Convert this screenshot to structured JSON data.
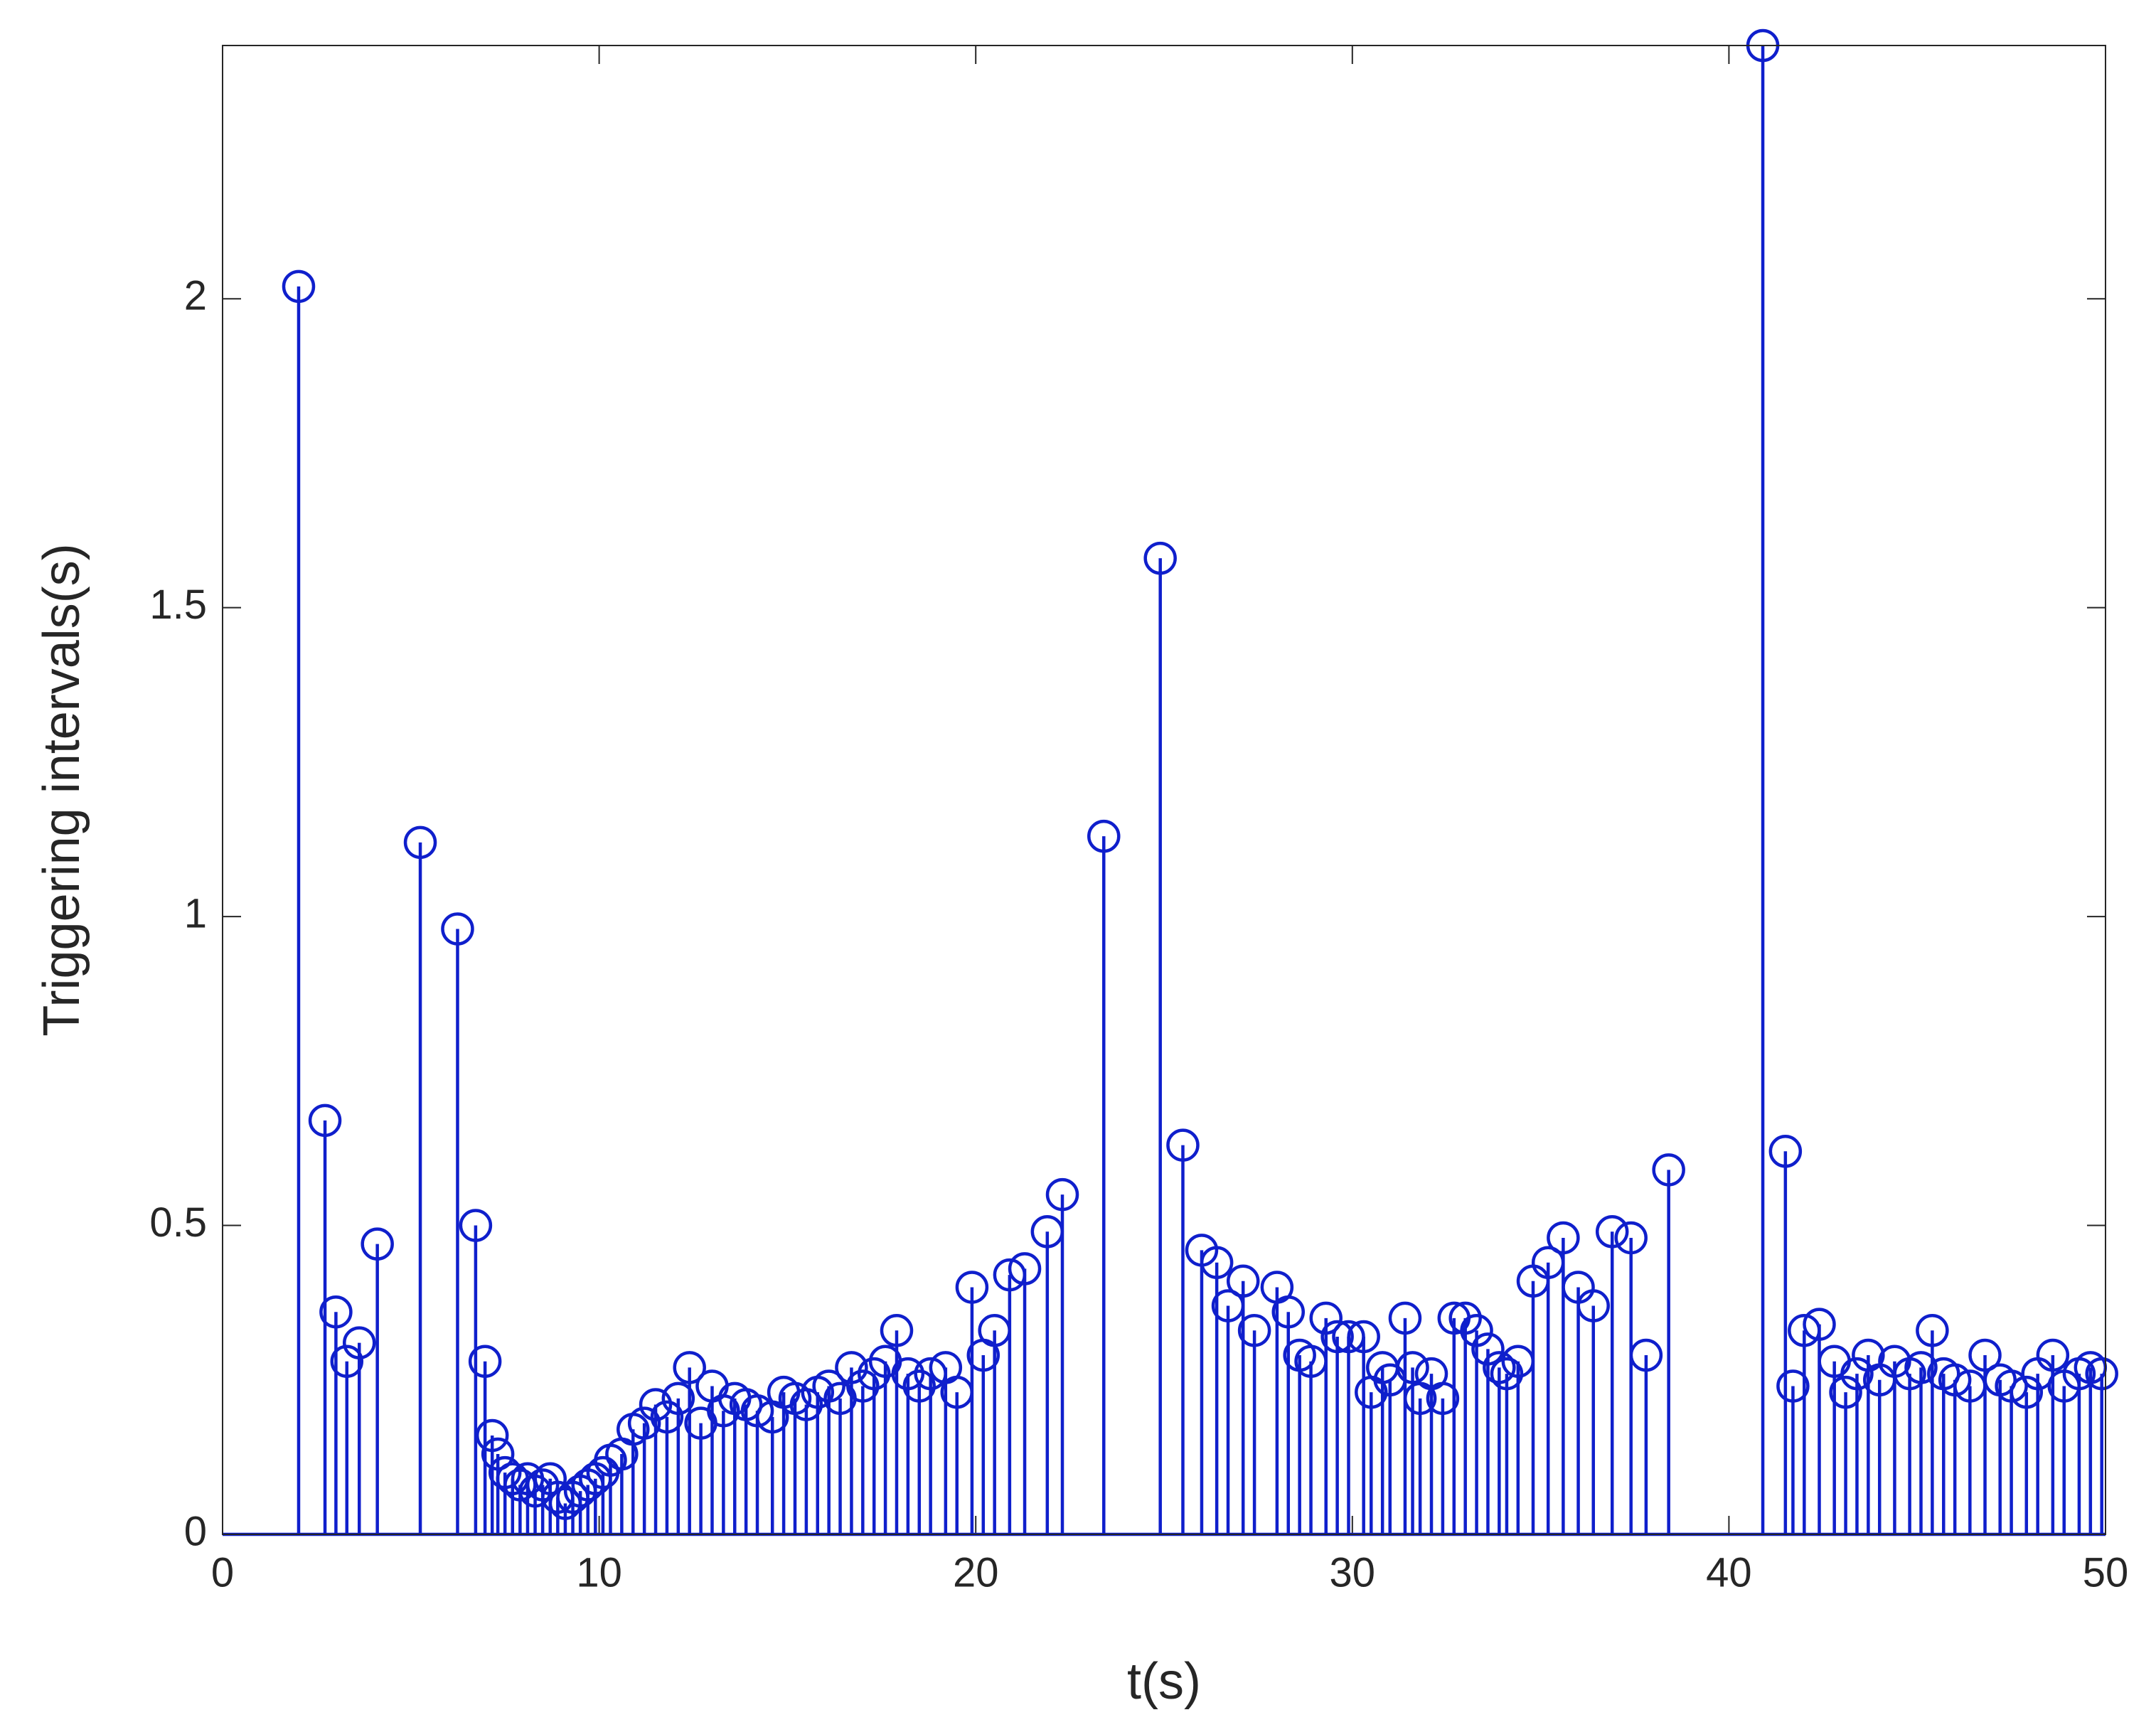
{
  "chart_data": {
    "type": "stem",
    "xlabel": "t(s)",
    "ylabel": "Triggering intervals(s)",
    "color": "#0f1fcc",
    "xlim": [
      0,
      50
    ],
    "xticks": [
      0,
      10,
      20,
      30,
      40,
      50
    ],
    "ylim": [
      0,
      2.41
    ],
    "yticks": [
      0,
      0.5,
      1,
      1.5,
      2
    ],
    "x": [
      2.02,
      2.72,
      3.01,
      3.3,
      3.63,
      4.11,
      5.25,
      6.24,
      6.72,
      6.97,
      7.16,
      7.31,
      7.5,
      7.7,
      7.9,
      8.1,
      8.3,
      8.5,
      8.7,
      8.9,
      9.1,
      9.3,
      9.5,
      9.7,
      9.9,
      10.1,
      10.3,
      10.6,
      10.9,
      11.2,
      11.5,
      11.8,
      12.1,
      12.4,
      12.7,
      13.0,
      13.3,
      13.6,
      13.9,
      14.2,
      14.6,
      14.9,
      15.2,
      15.5,
      15.8,
      16.1,
      16.4,
      16.7,
      17.0,
      17.3,
      17.6,
      17.9,
      18.2,
      18.5,
      18.8,
      19.2,
      19.5,
      19.9,
      20.2,
      20.5,
      20.9,
      21.3,
      21.9,
      22.3,
      23.4,
      24.9,
      25.5,
      26.0,
      26.4,
      26.7,
      27.1,
      27.4,
      28.0,
      28.3,
      28.6,
      28.9,
      29.3,
      29.6,
      29.9,
      30.3,
      30.5,
      30.8,
      31.0,
      31.4,
      31.6,
      31.8,
      32.1,
      32.4,
      32.7,
      33.0,
      33.3,
      33.6,
      33.9,
      34.1,
      34.4,
      34.8,
      35.2,
      35.6,
      36.0,
      36.4,
      36.9,
      37.4,
      37.8,
      38.4,
      40.9,
      41.5,
      41.7,
      42.0,
      42.4,
      42.8,
      43.1,
      43.4,
      43.7,
      44.0,
      44.4,
      44.8,
      45.1,
      45.4,
      45.7,
      46.0,
      46.4,
      46.8,
      47.2,
      47.5,
      47.9,
      48.2,
      48.6,
      48.9,
      49.3,
      49.6,
      49.9
    ],
    "values": [
      2.02,
      0.67,
      0.36,
      0.28,
      0.31,
      0.47,
      1.12,
      0.98,
      0.5,
      0.28,
      0.16,
      0.13,
      0.1,
      0.09,
      0.08,
      0.09,
      0.07,
      0.08,
      0.09,
      0.06,
      0.05,
      0.06,
      0.07,
      0.08,
      0.09,
      0.1,
      0.12,
      0.13,
      0.17,
      0.18,
      0.21,
      0.19,
      0.22,
      0.27,
      0.18,
      0.24,
      0.2,
      0.22,
      0.21,
      0.2,
      0.19,
      0.23,
      0.22,
      0.21,
      0.23,
      0.24,
      0.22,
      0.27,
      0.24,
      0.26,
      0.28,
      0.33,
      0.26,
      0.24,
      0.26,
      0.27,
      0.23,
      0.4,
      0.29,
      0.33,
      0.42,
      0.43,
      0.49,
      0.55,
      1.13,
      1.58,
      0.63,
      0.46,
      0.44,
      0.37,
      0.41,
      0.33,
      0.4,
      0.36,
      0.29,
      0.28,
      0.35,
      0.32,
      0.32,
      0.32,
      0.23,
      0.27,
      0.25,
      0.35,
      0.27,
      0.22,
      0.26,
      0.22,
      0.35,
      0.35,
      0.33,
      0.3,
      0.27,
      0.26,
      0.28,
      0.41,
      0.44,
      0.48,
      0.4,
      0.37,
      0.49,
      0.48,
      0.29,
      0.59,
      2.41,
      0.62,
      0.24,
      0.33,
      0.34,
      0.28,
      0.23,
      0.26,
      0.29,
      0.25,
      0.28,
      0.26,
      0.27,
      0.33,
      0.26,
      0.25,
      0.24,
      0.29,
      0.25,
      0.24,
      0.23,
      0.26,
      0.29,
      0.24,
      0.26,
      0.27,
      0.26
    ]
  }
}
